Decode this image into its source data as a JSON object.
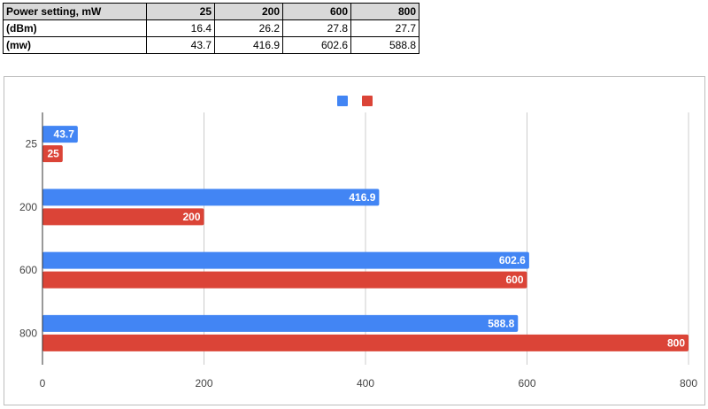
{
  "table": {
    "header": [
      "Power setting, mW",
      "25",
      "200",
      "600",
      "800"
    ],
    "rows": [
      {
        "label": "(dBm)",
        "values": [
          "16.4",
          "26.2",
          "27.8",
          "27.7"
        ]
      },
      {
        "label": "(mw)",
        "values": [
          "43.7",
          "416.9",
          "602.6",
          "588.8"
        ]
      }
    ]
  },
  "chart_data": {
    "type": "bar",
    "orientation": "horizontal",
    "categories": [
      "25",
      "200",
      "600",
      "800"
    ],
    "series": [
      {
        "values": [
          43.7,
          416.9,
          602.6,
          588.8
        ],
        "labels": [
          "43.7",
          "416.9",
          "602.6",
          "588.8"
        ],
        "color": "#4285f4"
      },
      {
        "values": [
          25,
          200,
          600,
          800
        ],
        "labels": [
          "25",
          "200",
          "600",
          "800"
        ],
        "color": "#db4437"
      }
    ],
    "xlim": [
      0,
      800
    ],
    "xticks": [
      "0",
      "200",
      "400",
      "600",
      "800"
    ],
    "grid": true,
    "legend": "top-center"
  }
}
